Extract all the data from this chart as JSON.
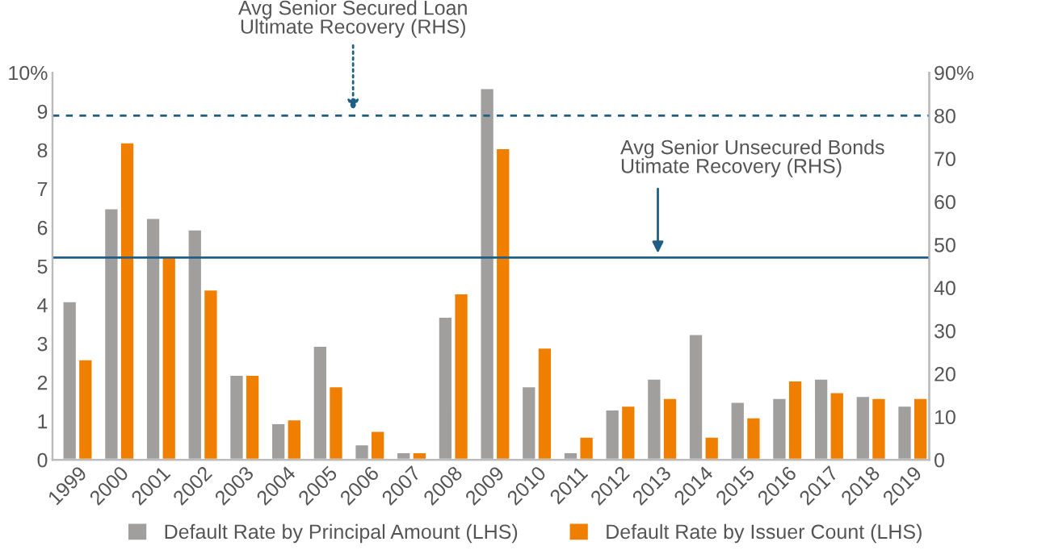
{
  "chart_data": {
    "type": "bar",
    "categories": [
      "1999",
      "2000",
      "2001",
      "2002",
      "2003",
      "2004",
      "2005",
      "2006",
      "2007",
      "2008",
      "2009",
      "2010",
      "2011",
      "2012",
      "2013",
      "2014",
      "2015",
      "2016",
      "2017",
      "2018",
      "2019"
    ],
    "series": [
      {
        "name": "Default Rate by Principal Amount (LHS)",
        "color": "#a09f9e",
        "values": [
          4.1,
          6.5,
          6.25,
          5.95,
          2.2,
          0.95,
          2.95,
          0.4,
          0.2,
          3.7,
          9.6,
          1.9,
          0.2,
          1.3,
          2.1,
          3.25,
          1.5,
          1.6,
          2.1,
          1.65,
          1.4
        ]
      },
      {
        "name": "Default Rate by Issuer Count (LHS)",
        "color": "#f07f00",
        "values": [
          2.6,
          8.2,
          5.25,
          4.4,
          2.2,
          1.05,
          1.9,
          0.75,
          0.2,
          4.3,
          8.05,
          2.9,
          0.6,
          1.4,
          1.6,
          0.6,
          1.1,
          2.05,
          1.75,
          1.6,
          1.6
        ]
      }
    ],
    "ylim": [
      0,
      10
    ],
    "yticks": [
      0,
      1,
      2,
      3,
      4,
      5,
      6,
      7,
      8,
      9,
      {
        "value": 10,
        "label": "10%"
      }
    ],
    "y2lim": [
      0,
      90
    ],
    "y2ticks": [
      0,
      10,
      20,
      30,
      40,
      50,
      60,
      70,
      80,
      {
        "value": 90,
        "label": "90%"
      }
    ],
    "ref_lines": [
      {
        "axis": "y2",
        "value": 80,
        "color": "#1f5f86",
        "line_style": "dashed"
      },
      {
        "axis": "y2",
        "value": 47,
        "color": "#1f5f86",
        "line_style": "solid"
      }
    ],
    "annotations": [
      "Avg Senior Secured Loan\nUltimate Recovery (RHS)",
      "Avg Senior Unsecured Bonds\nUtimate Recovery (RHS)"
    ],
    "legend": "bottom",
    "grid": false
  }
}
